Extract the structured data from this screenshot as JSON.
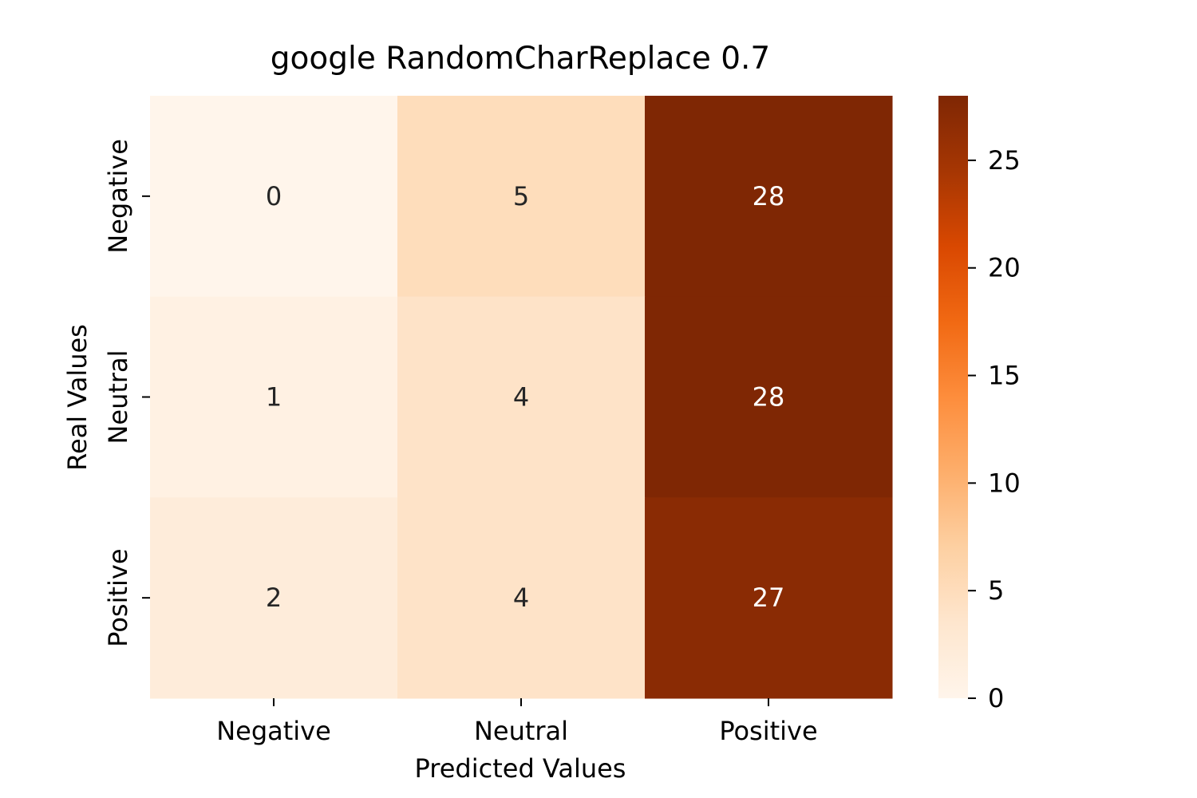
{
  "chart_data": {
    "type": "heatmap",
    "title": "google RandomCharReplace 0.7",
    "xlabel": "Predicted Values",
    "ylabel": "Real Values",
    "x_categories": [
      "Negative",
      "Neutral",
      "Positive"
    ],
    "y_categories": [
      "Negative",
      "Neutral",
      "Positive"
    ],
    "values": [
      [
        0,
        5,
        28
      ],
      [
        1,
        4,
        28
      ],
      [
        2,
        4,
        27
      ]
    ],
    "colormap": "Oranges",
    "colorbar": {
      "range": [
        0,
        28
      ],
      "ticks": [
        0,
        5,
        10,
        15,
        20,
        25
      ]
    },
    "grid": false
  }
}
